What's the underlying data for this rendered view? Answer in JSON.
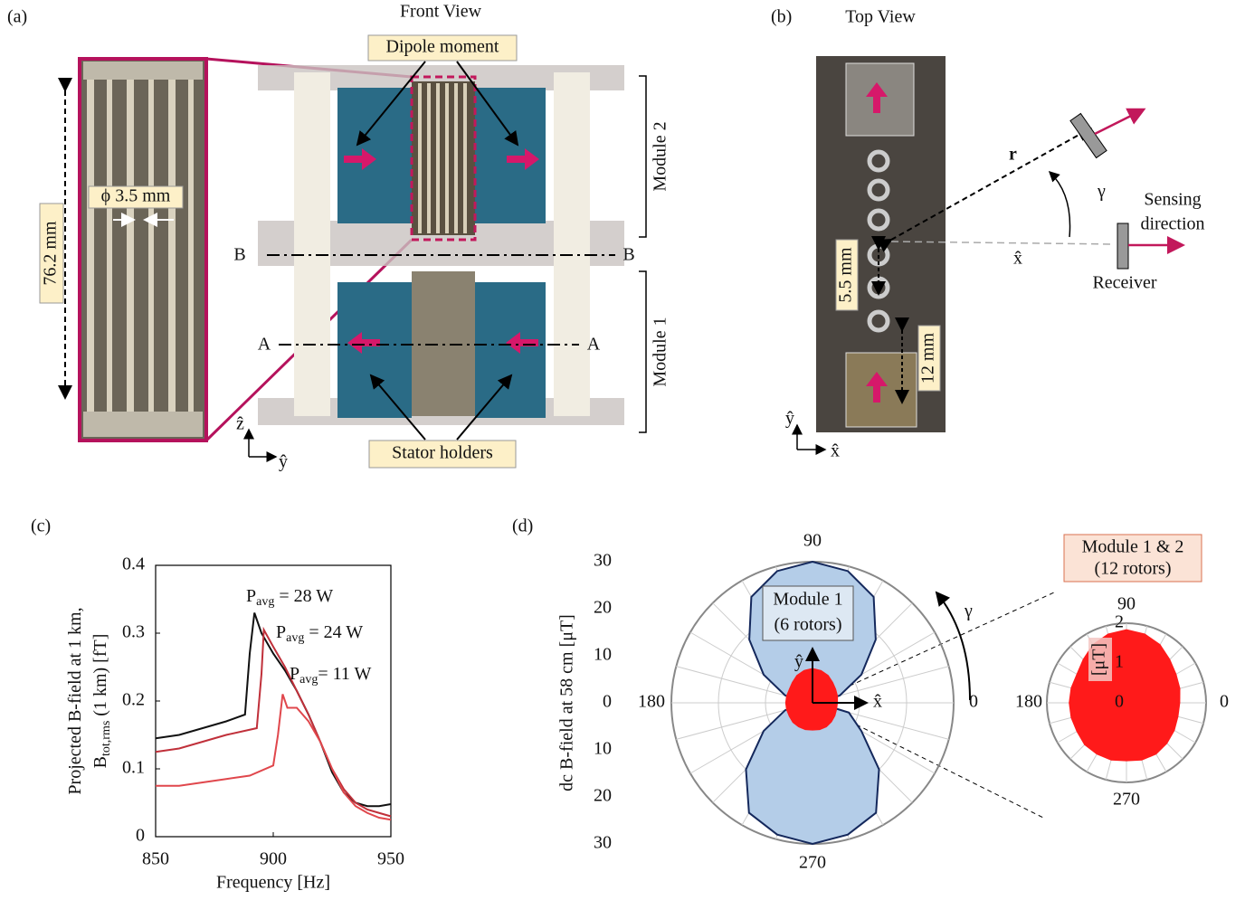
{
  "panels": {
    "a": {
      "label": "(a)",
      "title": "Front View",
      "dipole": "Dipole moment",
      "length": "76.2 mm",
      "diameter": "ϕ 3.5 mm",
      "module2": "Module 2",
      "module1": "Module 1",
      "line_b": [
        "B",
        "B"
      ],
      "line_a": [
        "A",
        "A"
      ],
      "stator": "Stator holders",
      "axes": [
        "ẑ",
        "ŷ"
      ]
    },
    "b": {
      "label": "(b)",
      "title": "Top View",
      "r": "r⃗",
      "gamma": "γ",
      "sensing": [
        "Sensing",
        "direction"
      ],
      "x": "x̂",
      "receiver": "Receiver",
      "spacing": "5.5 mm",
      "gap": "12 mm",
      "axes": [
        "ŷ",
        "x̂"
      ]
    }
  },
  "chart_data": [
    {
      "type": "line",
      "panel_label": "(c)",
      "y_label": [
        {
          "main": "Projected B-field at 1 km,"
        },
        {
          "main": "B",
          "sub": "tot,rms",
          "rest": " (1 km) [fT]"
        }
      ],
      "x_label": "Frequency [Hz]",
      "xlim": [
        850,
        950
      ],
      "xticks": [
        850,
        900,
        950
      ],
      "ylim": [
        0,
        0.4
      ],
      "yticks": [
        0,
        0.1,
        0.2,
        0.3,
        0.4
      ],
      "annotations": [
        {
          "main": "P",
          "sub": "avg",
          "rest": " = 28 W"
        },
        {
          "main": "P",
          "sub": "avg",
          "rest": " = 24 W"
        },
        {
          "main": "P",
          "sub": "avg",
          "rest": "= 11 W"
        }
      ],
      "series": [
        {
          "color": "#111111",
          "x": [
            850,
            860,
            870,
            880,
            888,
            890,
            892,
            895,
            900,
            905,
            910,
            915,
            920,
            925,
            930,
            935,
            940,
            945,
            950
          ],
          "values": [
            0.145,
            0.15,
            0.16,
            0.17,
            0.18,
            0.27,
            0.33,
            0.3,
            0.27,
            0.245,
            0.215,
            0.18,
            0.14,
            0.095,
            0.065,
            0.05,
            0.045,
            0.045,
            0.048
          ]
        },
        {
          "color": "#c0303a",
          "x": [
            850,
            860,
            870,
            880,
            893,
            895,
            896,
            900,
            905,
            910,
            915,
            920,
            925,
            930,
            935,
            940,
            945,
            950
          ],
          "values": [
            0.125,
            0.13,
            0.14,
            0.15,
            0.16,
            0.24,
            0.305,
            0.28,
            0.25,
            0.215,
            0.18,
            0.14,
            0.1,
            0.07,
            0.05,
            0.04,
            0.035,
            0.03
          ]
        },
        {
          "color": "#e0474c",
          "x": [
            850,
            860,
            870,
            880,
            890,
            900,
            902,
            904,
            906,
            910,
            915,
            920,
            925,
            930,
            935,
            940,
            945,
            950
          ],
          "values": [
            0.075,
            0.075,
            0.08,
            0.085,
            0.09,
            0.105,
            0.15,
            0.21,
            0.19,
            0.19,
            0.17,
            0.14,
            0.1,
            0.065,
            0.045,
            0.035,
            0.028,
            0.025
          ]
        }
      ]
    },
    {
      "type": "polar",
      "panel_label": "(d)",
      "y_label": "dc B-field at 58 cm [μT]",
      "rlim": [
        0,
        30
      ],
      "rticks": [
        0,
        10,
        20,
        30
      ],
      "thetaticks": [
        0,
        90,
        180,
        270
      ],
      "annotations": [
        "Module 1",
        "(6 rotors)",
        "ŷ",
        "x̂",
        "γ"
      ],
      "color": "#b4cde8",
      "theta": [
        0,
        15,
        30,
        45,
        60,
        75,
        90,
        105,
        120,
        135,
        150,
        165,
        180,
        195,
        210,
        225,
        240,
        255,
        270,
        285,
        300,
        315,
        330,
        345
      ],
      "values": [
        1,
        6,
        12,
        19,
        26,
        29,
        30,
        29,
        26,
        19,
        12,
        6,
        1,
        6,
        12,
        20,
        27,
        29,
        30,
        29,
        27,
        20,
        12,
        8
      ]
    },
    {
      "type": "polar",
      "title": [
        "Module 1 & 2",
        "(12 rotors)"
      ],
      "unit": "[μT]",
      "rlim": [
        0,
        2
      ],
      "rticks": [
        0,
        1,
        2
      ],
      "thetaticks": [
        0,
        90,
        180,
        270
      ],
      "color": "#ff1a1a",
      "theta": [
        0,
        15,
        30,
        45,
        60,
        75,
        90,
        105,
        120,
        135,
        150,
        165,
        180,
        195,
        210,
        225,
        240,
        255,
        270,
        285,
        300,
        315,
        330,
        345
      ],
      "values": [
        1.35,
        1.4,
        1.45,
        1.55,
        1.7,
        1.8,
        1.85,
        1.8,
        1.7,
        1.55,
        1.45,
        1.45,
        1.45,
        1.45,
        1.45,
        1.5,
        1.5,
        1.5,
        1.47,
        1.5,
        1.5,
        1.45,
        1.4,
        1.35
      ]
    }
  ]
}
